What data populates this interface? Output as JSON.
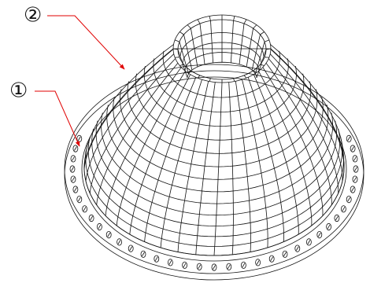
{
  "labels": [
    {
      "text": "②"
    },
    {
      "text": "①"
    }
  ]
}
